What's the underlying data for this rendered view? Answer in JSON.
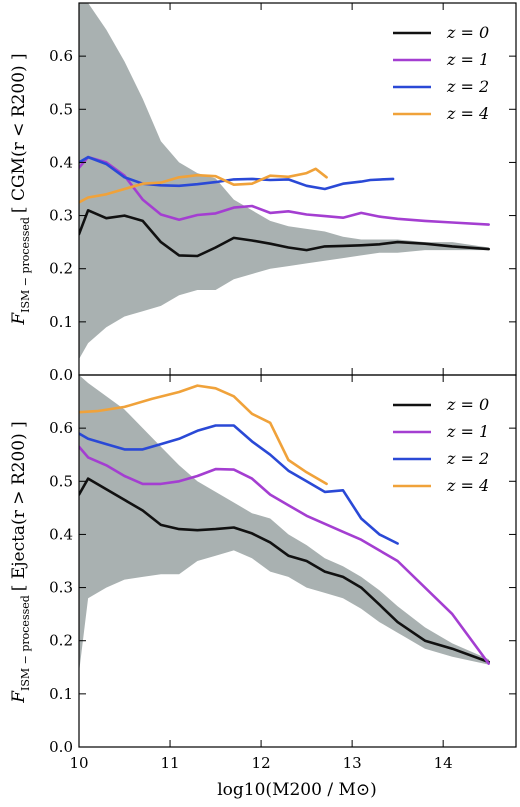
{
  "chart_data": [
    {
      "type": "line",
      "panel": "top",
      "ylabel": "F_{ISM-processed} [ CGM(r < R_200) ]",
      "ylabel_main": "F",
      "ylabel_sub": "ISM − processed",
      "ylabel_bracket": "[ CGM(r < R200) ]",
      "xlim": [
        10,
        14.8
      ],
      "ylim": [
        0.0,
        0.7
      ],
      "yticks": [
        0.0,
        0.1,
        0.2,
        0.3,
        0.4,
        0.5,
        0.6
      ],
      "ytick_labels": [
        "0.0",
        "0.1",
        "0.2",
        "0.3",
        "0.4",
        "0.5",
        "0.6"
      ],
      "legend_position": "top-right",
      "band": {
        "color": "#a9b1b1",
        "x": [
          10.0,
          10.1,
          10.3,
          10.5,
          10.7,
          10.9,
          11.1,
          11.3,
          11.5,
          11.7,
          11.9,
          12.1,
          12.3,
          12.5,
          12.7,
          12.9,
          13.1,
          13.3,
          13.5,
          13.8,
          14.1,
          14.5
        ],
        "upper": [
          0.72,
          0.7,
          0.65,
          0.59,
          0.52,
          0.44,
          0.4,
          0.38,
          0.37,
          0.33,
          0.31,
          0.29,
          0.28,
          0.275,
          0.27,
          0.26,
          0.255,
          0.255,
          0.255,
          0.25,
          0.25,
          0.24
        ],
        "lower": [
          0.03,
          0.06,
          0.09,
          0.11,
          0.12,
          0.13,
          0.15,
          0.16,
          0.16,
          0.18,
          0.19,
          0.2,
          0.205,
          0.21,
          0.215,
          0.22,
          0.225,
          0.23,
          0.23,
          0.235,
          0.235,
          0.235
        ]
      },
      "series": [
        {
          "name": "z = 0",
          "color": "#111111",
          "x": [
            10.0,
            10.1,
            10.3,
            10.5,
            10.7,
            10.9,
            11.1,
            11.3,
            11.5,
            11.7,
            11.9,
            12.1,
            12.3,
            12.5,
            12.7,
            12.9,
            13.1,
            13.3,
            13.5,
            13.8,
            14.1,
            14.5
          ],
          "y": [
            0.265,
            0.31,
            0.295,
            0.3,
            0.29,
            0.25,
            0.225,
            0.224,
            0.24,
            0.258,
            0.253,
            0.247,
            0.24,
            0.235,
            0.242,
            0.243,
            0.244,
            0.246,
            0.25,
            0.247,
            0.242,
            0.237
          ]
        },
        {
          "name": "z = 1",
          "color": "#a43ed1",
          "x": [
            10.0,
            10.1,
            10.3,
            10.5,
            10.7,
            10.9,
            11.1,
            11.3,
            11.5,
            11.7,
            11.9,
            12.1,
            12.3,
            12.5,
            12.7,
            12.9,
            13.1,
            13.3,
            13.5,
            13.8,
            14.1,
            14.5
          ],
          "y": [
            0.39,
            0.41,
            0.4,
            0.375,
            0.33,
            0.302,
            0.292,
            0.301,
            0.304,
            0.315,
            0.318,
            0.305,
            0.308,
            0.302,
            0.299,
            0.296,
            0.305,
            0.298,
            0.294,
            0.29,
            0.287,
            0.283
          ]
        },
        {
          "name": "z = 2",
          "color": "#2a49d6",
          "x": [
            10.0,
            10.1,
            10.3,
            10.5,
            10.7,
            10.9,
            11.1,
            11.3,
            11.5,
            11.7,
            11.9,
            12.1,
            12.3,
            12.5,
            12.7,
            12.9,
            13.1,
            13.2,
            13.45
          ],
          "y": [
            0.4,
            0.41,
            0.397,
            0.372,
            0.36,
            0.357,
            0.356,
            0.359,
            0.363,
            0.368,
            0.369,
            0.367,
            0.368,
            0.356,
            0.35,
            0.36,
            0.364,
            0.367,
            0.369
          ]
        },
        {
          "name": "z = 4",
          "color": "#f0a23a",
          "x": [
            10.0,
            10.1,
            10.3,
            10.5,
            10.7,
            10.9,
            11.1,
            11.3,
            11.5,
            11.7,
            11.9,
            12.1,
            12.3,
            12.5,
            12.6,
            12.72
          ],
          "y": [
            0.325,
            0.334,
            0.34,
            0.35,
            0.36,
            0.362,
            0.372,
            0.376,
            0.374,
            0.358,
            0.36,
            0.375,
            0.373,
            0.38,
            0.388,
            0.372
          ]
        }
      ]
    },
    {
      "type": "line",
      "panel": "bottom",
      "ylabel": "F_{ISM-processed} [ Ejecta(r > R_200) ]",
      "ylabel_main": "F",
      "ylabel_sub": "ISM − processed",
      "ylabel_bracket": "[ Ejecta(r > R200) ]",
      "xlabel": "log10(M200 / M⊙)",
      "xlim": [
        10,
        14.8
      ],
      "ylim": [
        0.0,
        0.7
      ],
      "xticks": [
        10,
        11,
        12,
        13,
        14
      ],
      "xtick_labels": [
        "10",
        "11",
        "12",
        "13",
        "14"
      ],
      "yticks": [
        0.0,
        0.1,
        0.2,
        0.3,
        0.4,
        0.5,
        0.6
      ],
      "ytick_labels": [
        "0.0",
        "0.1",
        "0.2",
        "0.3",
        "0.4",
        "0.5",
        "0.6"
      ],
      "legend_position": "top-right",
      "band": {
        "color": "#a9b1b1",
        "x": [
          10.0,
          10.1,
          10.3,
          10.5,
          10.7,
          10.9,
          11.1,
          11.3,
          11.5,
          11.7,
          11.9,
          12.1,
          12.3,
          12.5,
          12.7,
          12.9,
          13.1,
          13.3,
          13.5,
          13.8,
          14.1,
          14.5
        ],
        "upper": [
          0.7,
          0.685,
          0.66,
          0.635,
          0.6,
          0.565,
          0.53,
          0.5,
          0.48,
          0.46,
          0.44,
          0.43,
          0.4,
          0.38,
          0.355,
          0.34,
          0.32,
          0.295,
          0.265,
          0.225,
          0.195,
          0.165
        ],
        "lower": [
          0.14,
          0.28,
          0.3,
          0.315,
          0.32,
          0.325,
          0.325,
          0.35,
          0.36,
          0.37,
          0.355,
          0.33,
          0.32,
          0.3,
          0.29,
          0.28,
          0.26,
          0.235,
          0.215,
          0.185,
          0.17,
          0.155
        ]
      },
      "series": [
        {
          "name": "z = 0",
          "color": "#111111",
          "x": [
            10.0,
            10.1,
            10.3,
            10.5,
            10.7,
            10.9,
            11.1,
            11.3,
            11.5,
            11.7,
            11.9,
            12.1,
            12.3,
            12.5,
            12.7,
            12.9,
            13.1,
            13.3,
            13.5,
            13.8,
            14.1,
            14.5
          ],
          "y": [
            0.475,
            0.505,
            0.485,
            0.465,
            0.445,
            0.418,
            0.41,
            0.408,
            0.41,
            0.413,
            0.402,
            0.385,
            0.36,
            0.35,
            0.33,
            0.32,
            0.3,
            0.268,
            0.235,
            0.2,
            0.185,
            0.16
          ]
        },
        {
          "name": "z = 1",
          "color": "#a43ed1",
          "x": [
            10.0,
            10.1,
            10.3,
            10.5,
            10.7,
            10.9,
            11.1,
            11.3,
            11.5,
            11.7,
            11.9,
            12.1,
            12.3,
            12.5,
            12.7,
            12.9,
            13.1,
            13.3,
            13.5,
            14.1,
            14.5
          ],
          "y": [
            0.565,
            0.545,
            0.53,
            0.51,
            0.495,
            0.495,
            0.5,
            0.51,
            0.523,
            0.522,
            0.505,
            0.475,
            0.455,
            0.435,
            0.42,
            0.405,
            0.39,
            0.37,
            0.35,
            0.25,
            0.157
          ]
        },
        {
          "name": "z = 2",
          "color": "#2a49d6",
          "x": [
            10.0,
            10.1,
            10.3,
            10.5,
            10.7,
            10.9,
            11.1,
            11.3,
            11.5,
            11.7,
            11.9,
            12.1,
            12.3,
            12.5,
            12.7,
            12.9,
            13.1,
            13.3,
            13.5
          ],
          "y": [
            0.59,
            0.58,
            0.57,
            0.56,
            0.56,
            0.57,
            0.58,
            0.595,
            0.605,
            0.605,
            0.575,
            0.55,
            0.52,
            0.5,
            0.48,
            0.483,
            0.43,
            0.4,
            0.383
          ]
        },
        {
          "name": "z = 4",
          "color": "#f0a23a",
          "x": [
            10.0,
            10.2,
            10.5,
            10.8,
            11.1,
            11.3,
            11.5,
            11.7,
            11.9,
            12.1,
            12.3,
            12.5,
            12.72
          ],
          "y": [
            0.63,
            0.632,
            0.64,
            0.655,
            0.668,
            0.68,
            0.675,
            0.66,
            0.627,
            0.61,
            0.54,
            0.517,
            0.495
          ]
        }
      ]
    }
  ]
}
